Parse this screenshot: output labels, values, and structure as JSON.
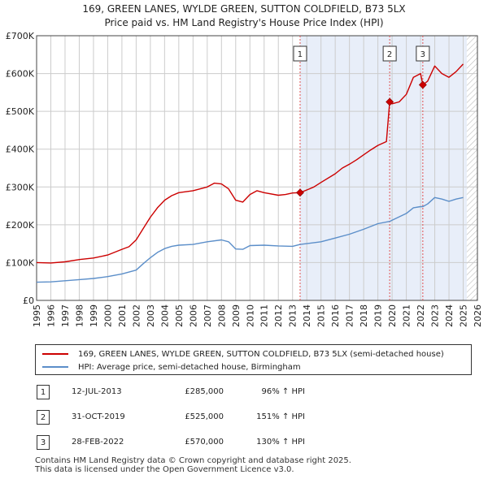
{
  "title_line1": "169, GREEN LANES, WYLDE GREEN, SUTTON COLDFIELD, B73 5LX",
  "title_line2": "Price paid vs. HM Land Registry's House Price Index (HPI)",
  "colors": {
    "property_line": "#cc0000",
    "hpi_line": "#5b8ec9",
    "shade": "#e8eef9",
    "marker_vline": "#e05050",
    "grid": "#cccccc"
  },
  "chart_data": {
    "type": "line",
    "x_range": [
      1995,
      2026
    ],
    "ylim": [
      0,
      700000
    ],
    "y_ticks": [
      {
        "value": 0,
        "label": "£0"
      },
      {
        "value": 100000,
        "label": "£100K"
      },
      {
        "value": 200000,
        "label": "£200K"
      },
      {
        "value": 300000,
        "label": "£300K"
      },
      {
        "value": 400000,
        "label": "£400K"
      },
      {
        "value": 500000,
        "label": "£500K"
      },
      {
        "value": 600000,
        "label": "£600K"
      },
      {
        "value": 700000,
        "label": "£700K"
      }
    ],
    "x_ticks": [
      "1995",
      "1996",
      "1997",
      "1998",
      "1999",
      "2000",
      "2001",
      "2002",
      "2003",
      "2004",
      "2005",
      "2006",
      "2007",
      "2008",
      "2009",
      "2010",
      "2011",
      "2012",
      "2013",
      "2014",
      "2015",
      "2016",
      "2017",
      "2018",
      "2019",
      "2020",
      "2021",
      "2022",
      "2023",
      "2024",
      "2025",
      "2026"
    ],
    "shaded_range": [
      2013.53,
      2025.25
    ],
    "hatched_from": 2025.25,
    "series": [
      {
        "name": "169, GREEN LANES, WYLDE GREEN, SUTTON COLDFIELD, B73 5LX (semi-detached house)",
        "x": [
          1995,
          1996,
          1997,
          1998,
          1999,
          2000,
          2001,
          2001.5,
          2002,
          2002.5,
          2003,
          2003.5,
          2004,
          2004.5,
          2005,
          2006,
          2007,
          2007.5,
          2008,
          2008.5,
          2009,
          2009.5,
          2010,
          2010.5,
          2011,
          2012,
          2012.5,
          2013,
          2013.53,
          2014,
          2014.5,
          2015,
          2016,
          2016.5,
          2017,
          2017.5,
          2018,
          2018.5,
          2019,
          2019.6,
          2019.83,
          2020,
          2020.5,
          2021,
          2021.5,
          2022,
          2022.16,
          2022.5,
          2023,
          2023.5,
          2024,
          2024.5,
          2025
        ],
        "y": [
          100000,
          99000,
          102000,
          108000,
          112000,
          120000,
          135000,
          142000,
          160000,
          190000,
          220000,
          245000,
          265000,
          277000,
          285000,
          290000,
          300000,
          310000,
          308000,
          295000,
          265000,
          260000,
          280000,
          290000,
          285000,
          278000,
          280000,
          284000,
          285000,
          292000,
          300000,
          312000,
          335000,
          350000,
          360000,
          372000,
          385000,
          398000,
          410000,
          420000,
          525000,
          520000,
          525000,
          545000,
          590000,
          600000,
          570000,
          580000,
          620000,
          600000,
          590000,
          605000,
          625000
        ]
      },
      {
        "name": "HPI: Average price, semi-detached house, Birmingham",
        "x": [
          1995,
          1996,
          1997,
          1998,
          1999,
          2000,
          2001,
          2002,
          2002.5,
          2003,
          2003.5,
          2004,
          2004.5,
          2005,
          2006,
          2007,
          2008,
          2008.5,
          2009,
          2009.5,
          2010,
          2011,
          2012,
          2013,
          2013.53,
          2014,
          2015,
          2016,
          2017,
          2018,
          2019,
          2019.83,
          2020,
          2021,
          2021.5,
          2022,
          2022.16,
          2022.5,
          2023,
          2023.5,
          2024,
          2024.5,
          2025
        ],
        "y": [
          48000,
          49000,
          52000,
          55000,
          58000,
          63000,
          70000,
          80000,
          97000,
          113000,
          127000,
          137000,
          143000,
          146000,
          148000,
          155000,
          160000,
          155000,
          136000,
          135000,
          145000,
          146000,
          144000,
          143000,
          148000,
          150000,
          155000,
          165000,
          175000,
          188000,
          203000,
          209000,
          212000,
          230000,
          245000,
          248000,
          248000,
          255000,
          272000,
          268000,
          262000,
          268000,
          272000
        ]
      }
    ],
    "transactions_markers": [
      {
        "label": "1",
        "x": 2013.53,
        "y": 285000
      },
      {
        "label": "2",
        "x": 2019.83,
        "y": 525000
      },
      {
        "label": "3",
        "x": 2022.16,
        "y": 570000
      }
    ]
  },
  "legend": {
    "property": "169, GREEN LANES, WYLDE GREEN, SUTTON COLDFIELD, B73 5LX (semi-detached house)",
    "hpi": "HPI: Average price, semi-detached house, Birmingham"
  },
  "transactions": [
    {
      "num": "1",
      "date": "12-JUL-2013",
      "price": "£285,000",
      "hpi": "96% ↑ HPI"
    },
    {
      "num": "2",
      "date": "31-OCT-2019",
      "price": "£525,000",
      "hpi": "151% ↑ HPI"
    },
    {
      "num": "3",
      "date": "28-FEB-2022",
      "price": "£570,000",
      "hpi": "130% ↑ HPI"
    }
  ],
  "footer_line1": "Contains HM Land Registry data © Crown copyright and database right 2025.",
  "footer_line2": "This data is licensed under the Open Government Licence v3.0."
}
